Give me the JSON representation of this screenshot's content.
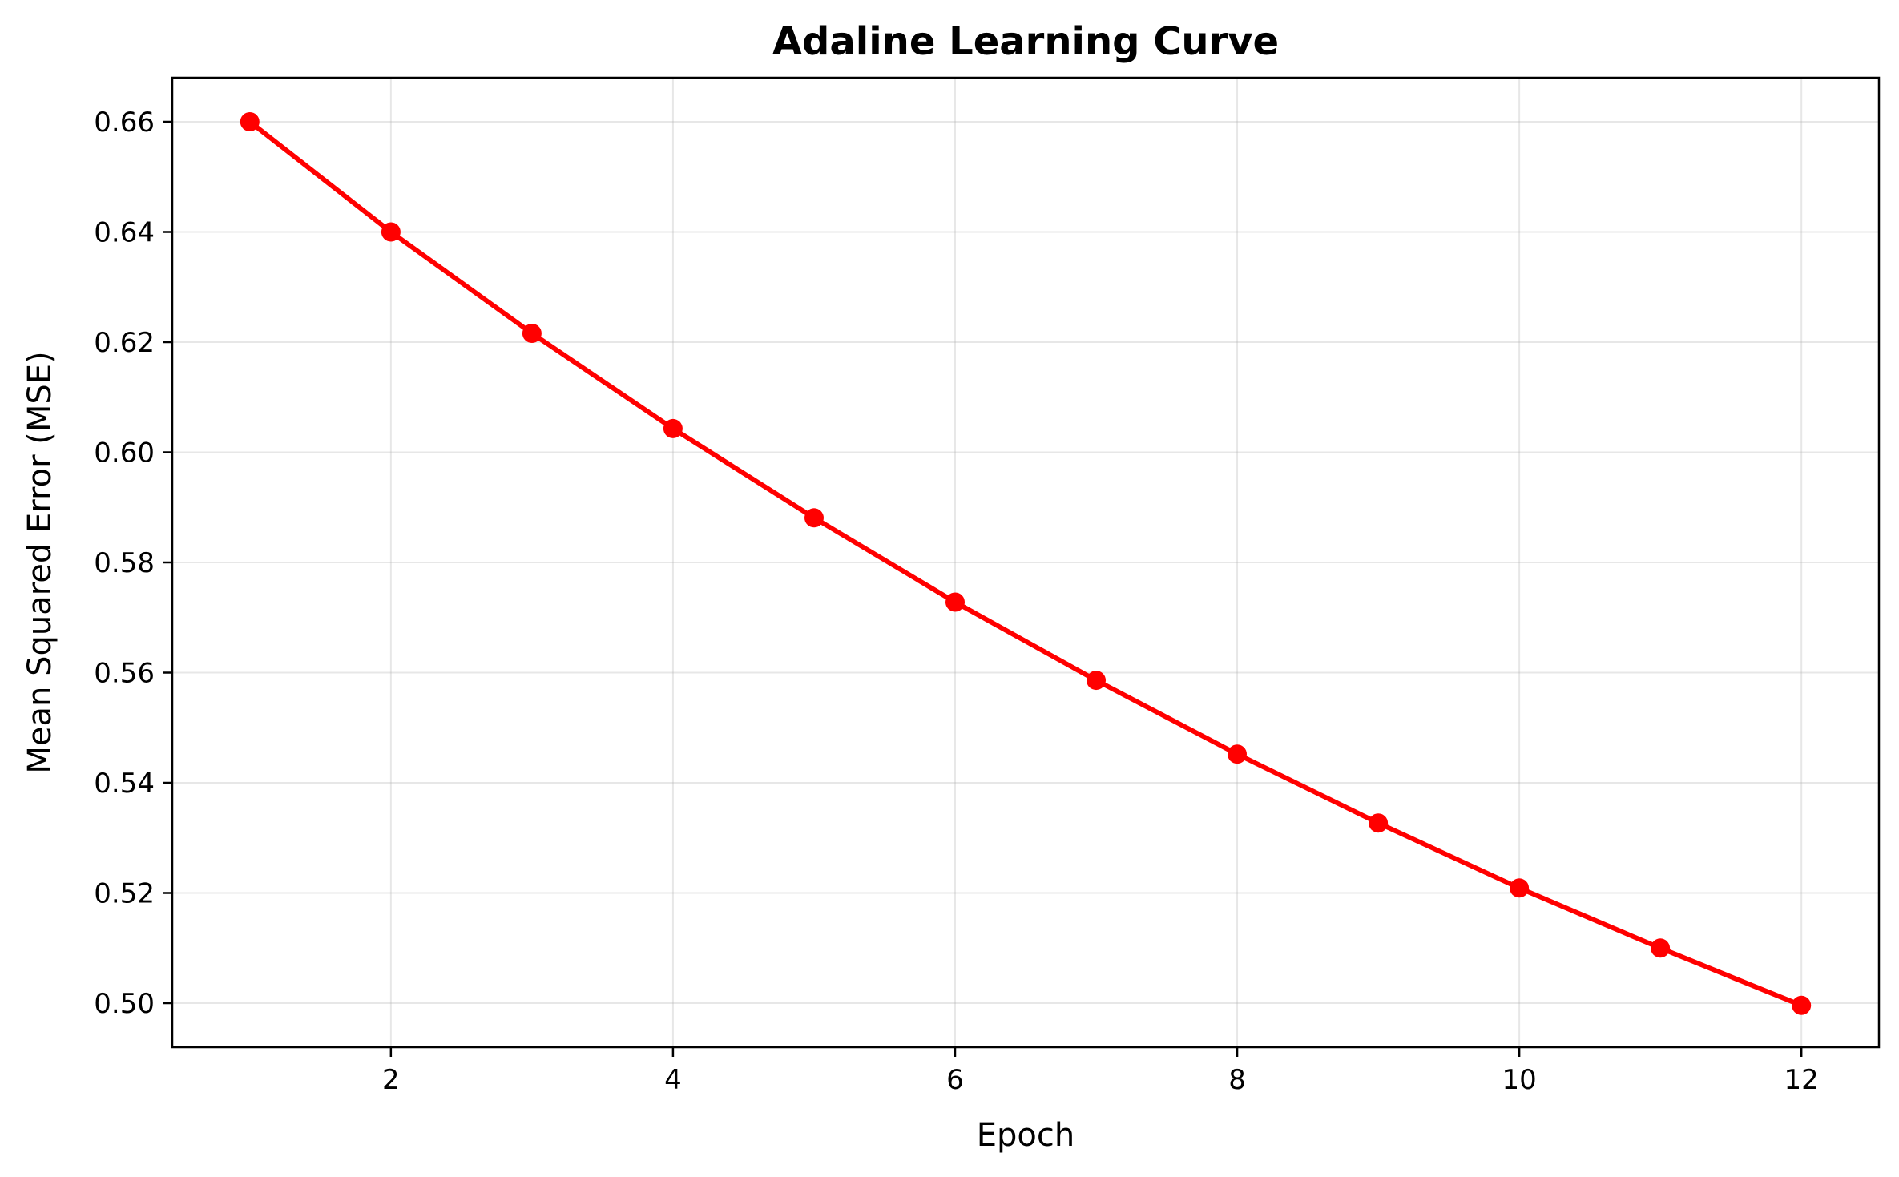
{
  "chart_data": {
    "type": "line",
    "title": "Adaline Learning Curve",
    "xlabel": "Epoch",
    "ylabel": "Mean Squared Error (MSE)",
    "xlim": [
      0.45,
      12.55
    ],
    "ylim": [
      0.492,
      0.668
    ],
    "x_ticks": [
      2,
      4,
      6,
      8,
      10,
      12
    ],
    "x_tick_labels": [
      "2",
      "4",
      "6",
      "8",
      "10",
      "12"
    ],
    "y_ticks": [
      0.5,
      0.52,
      0.54,
      0.56,
      0.58,
      0.6,
      0.62,
      0.64,
      0.66
    ],
    "y_tick_labels": [
      "0.50",
      "0.52",
      "0.54",
      "0.56",
      "0.58",
      "0.60",
      "0.62",
      "0.64",
      "0.66"
    ],
    "grid": true,
    "legend": "none",
    "series": [
      {
        "color": "#ff0000",
        "marker": "circle",
        "x": [
          1,
          2,
          3,
          4,
          5,
          6,
          7,
          8,
          9,
          10,
          11,
          12
        ],
        "y": [
          0.66,
          0.64,
          0.6216,
          0.6043,
          0.5881,
          0.5728,
          0.5586,
          0.5452,
          0.5327,
          0.5209,
          0.51,
          0.4996
        ]
      }
    ]
  }
}
